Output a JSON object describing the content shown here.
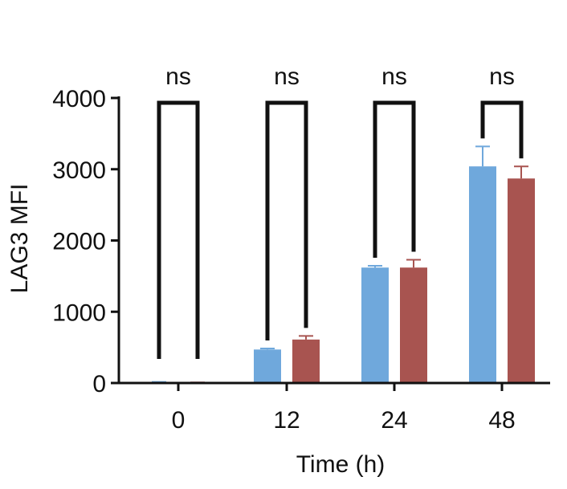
{
  "chart_data": {
    "type": "bar",
    "title": "",
    "xlabel": "Time (h)",
    "ylabel": "LAG3 MFI",
    "ylim": [
      0,
      4000
    ],
    "yticks": [
      0,
      1000,
      2000,
      3000,
      4000
    ],
    "categories": [
      "0",
      "12",
      "24",
      "48"
    ],
    "grid": false,
    "legend": "none",
    "series": [
      {
        "color": "#6fa8dc",
        "values": [
          10,
          470,
          1620,
          3040
        ],
        "errors": [
          5,
          15,
          25,
          280
        ]
      },
      {
        "color": "#a85450",
        "values": [
          5,
          610,
          1620,
          2870
        ],
        "errors": [
          3,
          50,
          110,
          170
        ]
      }
    ],
    "annotations": [
      {
        "category": "0",
        "text": "ns"
      },
      {
        "category": "12",
        "text": "ns"
      },
      {
        "category": "24",
        "text": "ns"
      },
      {
        "category": "48",
        "text": "ns"
      }
    ]
  }
}
